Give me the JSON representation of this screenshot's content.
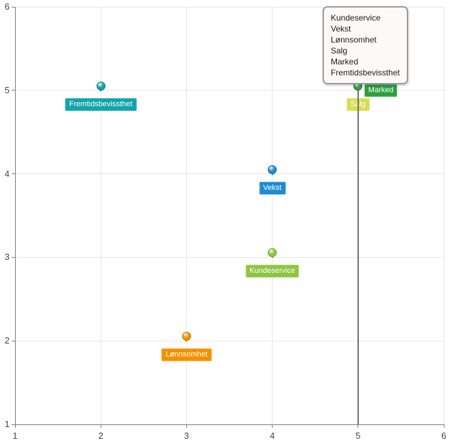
{
  "chart_data": {
    "type": "scatter",
    "title": "",
    "xlabel": "",
    "ylabel": "",
    "xlim": [
      1,
      6
    ],
    "ylim": [
      1,
      6
    ],
    "x_ticks": [
      "1",
      "2",
      "3",
      "4",
      "5",
      "6"
    ],
    "y_ticks": [
      "1",
      "2",
      "3",
      "4",
      "5",
      "6"
    ],
    "grid": true,
    "grid_color": "#e7e7e7",
    "axis_color": "#7a7a7a",
    "tick_label_color": "#444444",
    "series": [
      {
        "name": "Kundeservice",
        "x": 4,
        "y": 3,
        "color": "#8cc63f",
        "dark": "#6fa32c",
        "label_border": "#bcdf8b",
        "label_pos": "below"
      },
      {
        "name": "Vekst",
        "x": 4,
        "y": 4,
        "color": "#1e8bd0",
        "dark": "#166fa9",
        "label_border": "#74b4e2",
        "label_pos": "below"
      },
      {
        "name": "Lønnsomhet",
        "x": 3,
        "y": 2,
        "color": "#f39200",
        "dark": "#c27400",
        "label_border": "#f8bd69",
        "label_pos": "below"
      },
      {
        "name": "Salg",
        "x": 5,
        "y": 5,
        "color": "#d9dc50",
        "dark": "#b2b53c",
        "label_border": "#e9eb9a",
        "label_pos": "below"
      },
      {
        "name": "Marked",
        "x": 5,
        "y": 5,
        "color": "#2d9e41",
        "dark": "#207c31",
        "label_border": "#7cc58a",
        "label_pos": "right"
      },
      {
        "name": "Fremtidsbevissthet",
        "x": 2,
        "y": 5,
        "color": "#12a4ab",
        "dark": "#0c7d83",
        "label_border": "#66c6cb",
        "label_pos": "below"
      }
    ],
    "crosshair": {
      "x": 5,
      "color": "#6f6f6f"
    },
    "tooltip": {
      "items": [
        "Kundeservice",
        "Vekst",
        "Lønnsomhet",
        "Salg",
        "Marked",
        "Fremtidsbevissthet"
      ],
      "border_color": "#9a9a9a",
      "bg_color": "#fdf9f9"
    }
  }
}
